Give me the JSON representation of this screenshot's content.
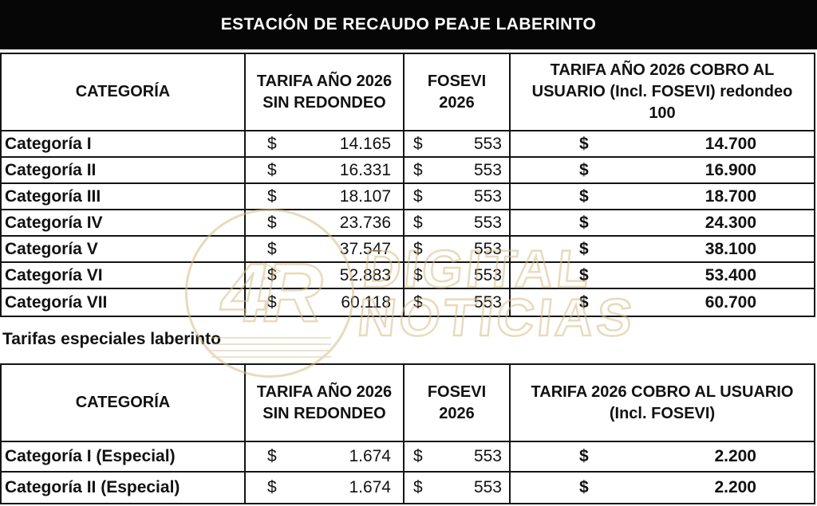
{
  "title": "ESTACIÓN DE RECAUDO PEAJE LABERINTO",
  "currency": "$",
  "main_table": {
    "headers": {
      "categoria": "CATEGORÍA",
      "tarifa": "TARIFA AÑO 2026 SIN REDONDEO",
      "fosevi": "FOSEVI 2026",
      "cobro": "TARIFA AÑO 2026 COBRO AL USUARIO (Incl. FOSEVI) redondeo 100"
    },
    "rows": [
      {
        "categoria": "Categoría I",
        "tarifa": "14.165",
        "fosevi": "553",
        "cobro": "14.700"
      },
      {
        "categoria": "Categoría II",
        "tarifa": "16.331",
        "fosevi": "553",
        "cobro": "16.900"
      },
      {
        "categoria": "Categoría III",
        "tarifa": "18.107",
        "fosevi": "553",
        "cobro": "18.700"
      },
      {
        "categoria": "Categoría IV",
        "tarifa": "23.736",
        "fosevi": "553",
        "cobro": "24.300"
      },
      {
        "categoria": "Categoría V",
        "tarifa": "37.547",
        "fosevi": "553",
        "cobro": "38.100"
      },
      {
        "categoria": "Categoría VI",
        "tarifa": "52.883",
        "fosevi": "553",
        "cobro": "53.400"
      },
      {
        "categoria": "Categoría VII",
        "tarifa": "60.118",
        "fosevi": "553",
        "cobro": "60.700"
      }
    ]
  },
  "section_label": "Tarifas especiales laberinto",
  "special_table": {
    "headers": {
      "categoria": "CATEGORÍA",
      "tarifa": "TARIFA AÑO 2026 SIN REDONDEO",
      "fosevi": "FOSEVI 2026",
      "cobro": "TARIFA 2026 COBRO AL USUARIO (Incl. FOSEVI)"
    },
    "rows": [
      {
        "categoria": "Categoría I (Especial)",
        "tarifa": "1.674",
        "fosevi": "553",
        "cobro": "2.200"
      },
      {
        "categoria": "Categoría II (Especial)",
        "tarifa": "1.674",
        "fosevi": "553",
        "cobro": "2.200"
      }
    ]
  },
  "watermark": {
    "logo_text": "4R",
    "play_icon": "▶",
    "line1": "DIGITAL",
    "line2": "NOTICIAS",
    "color": "#d7bc87"
  },
  "colors": {
    "title_bar_bg": "#060606",
    "title_text": "#ffffff",
    "table_border": "#141414",
    "body_text": "#111111"
  }
}
